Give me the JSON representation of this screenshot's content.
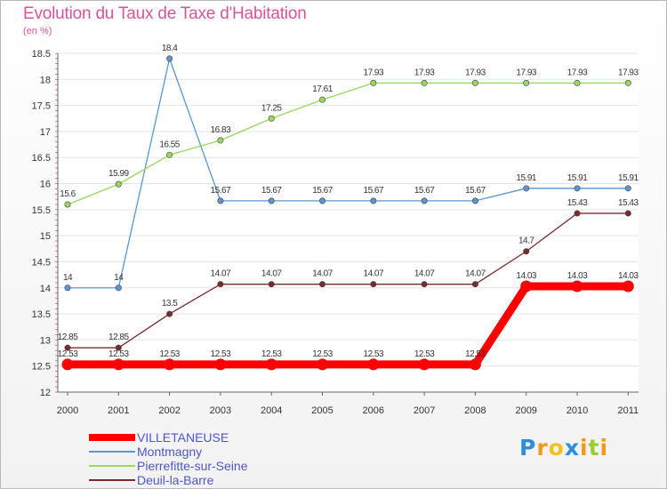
{
  "title": "Evolution du Taux de Taxe d'Habitation",
  "subtitle": "(en %)",
  "logo": {
    "text": "Proxiti",
    "letters": [
      {
        "ch": "P",
        "color": "#2f8ed8"
      },
      {
        "ch": "r",
        "color": "#f29a1e"
      },
      {
        "ch": "o",
        "color": "#f2c21e"
      },
      {
        "ch": "x",
        "color": "#2f8ed8"
      },
      {
        "ch": "i",
        "color": "#f29a1e"
      },
      {
        "ch": "t",
        "color": "#9acd32"
      },
      {
        "ch": "i",
        "color": "#f29a1e"
      }
    ]
  },
  "chart_data": {
    "type": "line",
    "title": "Evolution du Taux de Taxe d'Habitation",
    "ylabel": "(en %)",
    "xlabel": "",
    "x": [
      "2000",
      "2001",
      "2002",
      "2003",
      "2004",
      "2005",
      "2006",
      "2007",
      "2008",
      "2009",
      "2010",
      "2011"
    ],
    "ylim": [
      12,
      18.5
    ],
    "yticks": [
      "12",
      "12.5",
      "13",
      "13.5",
      "14",
      "14.5",
      "15",
      "15.5",
      "16",
      "16.5",
      "17",
      "17.5",
      "18",
      "18.5"
    ],
    "grid": "horizontal",
    "legend_position": "bottom-left",
    "series": [
      {
        "name": "VILLETANEUSE",
        "color": "#ff0000",
        "highlight": true,
        "values": [
          12.53,
          12.53,
          12.53,
          12.53,
          12.53,
          12.53,
          12.53,
          12.53,
          12.53,
          14.03,
          14.03,
          14.03
        ],
        "labels": [
          "12.53",
          "12.53",
          "12.53",
          "12.53",
          "12.53",
          "12.53",
          "12.53",
          "12.53",
          "12.53",
          "14.03",
          "14.03",
          "14.03"
        ]
      },
      {
        "name": "Montmagny",
        "color": "#5a96d2",
        "values": [
          14,
          14,
          18.4,
          15.67,
          15.67,
          15.67,
          15.67,
          15.67,
          15.67,
          15.91,
          15.91,
          15.91
        ],
        "labels": [
          "14",
          "14",
          "18.4",
          "15.67",
          "15.67",
          "15.67",
          "15.67",
          "15.67",
          "15.67",
          "15.91",
          "15.91",
          "15.91"
        ]
      },
      {
        "name": "Pierrefitte-sur-Seine",
        "color": "#98d860",
        "values": [
          15.6,
          15.99,
          16.55,
          16.83,
          17.25,
          17.61,
          17.93,
          17.93,
          17.93,
          17.93,
          17.93,
          17.93
        ],
        "labels": [
          "15.6",
          "15.99",
          "16.55",
          "16.83",
          "17.25",
          "17.61",
          "17.93",
          "17.93",
          "17.93",
          "17.93",
          "17.93",
          "17.93"
        ]
      },
      {
        "name": "Deuil-la-Barre",
        "color": "#7a2a2a",
        "values": [
          12.85,
          12.85,
          13.5,
          14.07,
          14.07,
          14.07,
          14.07,
          14.07,
          14.07,
          14.7,
          15.43,
          15.43
        ],
        "labels": [
          "12.85",
          "12.85",
          "13.5",
          "14.07",
          "14.07",
          "14.07",
          "14.07",
          "14.07",
          "14.07",
          "14.7",
          "15.43",
          "15.43"
        ]
      }
    ]
  }
}
